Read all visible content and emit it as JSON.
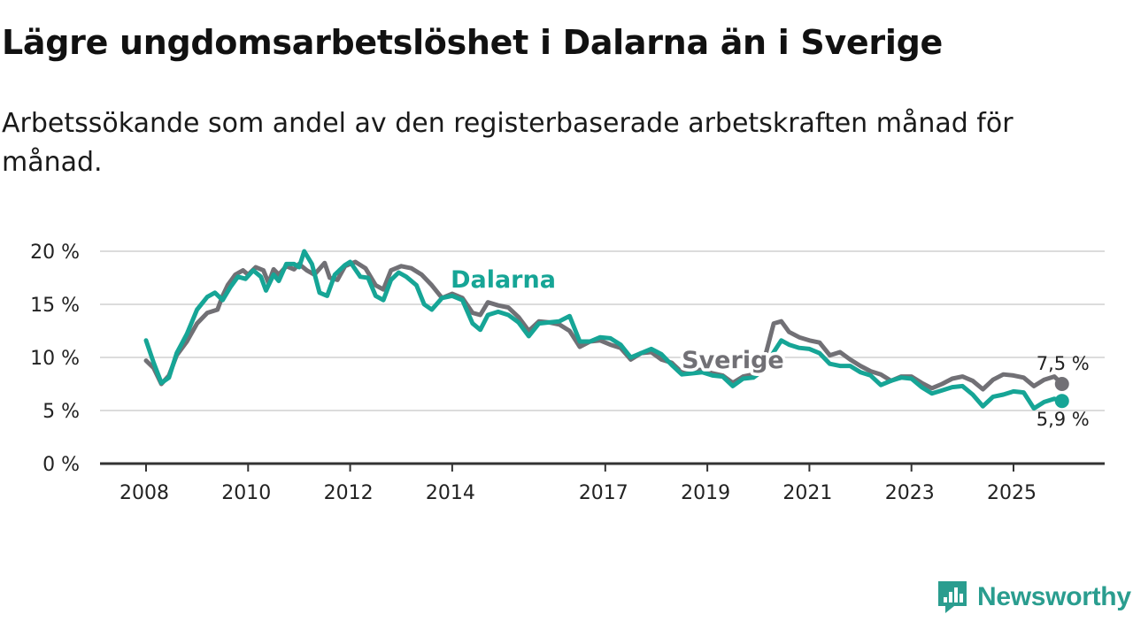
{
  "header": {
    "title": "Lägre ungdomsarbetslöshet i Dalarna än i Sverige",
    "subtitle": "Arbetssökande som andel av den registerbaserade arbetskraften månad för månad."
  },
  "brand": {
    "name": "Newsworthy"
  },
  "colors": {
    "dalarna": "#16a596",
    "sverige": "#717075",
    "grid": "#dcdcdc",
    "axis": "#333333",
    "brand": "#2a9d8f"
  },
  "chart_data": {
    "type": "line",
    "title": "Lägre ungdomsarbetslöshet i Dalarna än i Sverige",
    "subtitle": "Arbetssökande som andel av den registerbaserade arbetskraften månad för månad.",
    "xlabel": "",
    "ylabel": "",
    "xlim": [
      2008.0,
      2026.6
    ],
    "ylim": [
      0,
      20
    ],
    "yticks": [
      0,
      5,
      10,
      15,
      20
    ],
    "ytick_labels": [
      "0 %",
      "5 %",
      "10 %",
      "15 %",
      "20 %"
    ],
    "xticks": [
      2008,
      2010,
      2012,
      2014,
      2017,
      2019,
      2021,
      2023,
      2025
    ],
    "xtick_labels": [
      "2008",
      "2010",
      "2012",
      "2014",
      "2017",
      "2019",
      "2021",
      "2023",
      "2025"
    ],
    "grid": true,
    "series": [
      {
        "name": "Sverige",
        "label": "Sverige",
        "end_label": "7,5 %",
        "points": [
          [
            2008.0,
            9.7
          ],
          [
            2008.15,
            9.0
          ],
          [
            2008.3,
            7.5
          ],
          [
            2008.45,
            8.3
          ],
          [
            2008.6,
            10.2
          ],
          [
            2008.8,
            11.5
          ],
          [
            2009.0,
            13.2
          ],
          [
            2009.2,
            14.2
          ],
          [
            2009.4,
            14.5
          ],
          [
            2009.5,
            15.8
          ],
          [
            2009.6,
            16.8
          ],
          [
            2009.75,
            17.8
          ],
          [
            2009.9,
            18.2
          ],
          [
            2010.0,
            17.8
          ],
          [
            2010.15,
            18.5
          ],
          [
            2010.3,
            18.2
          ],
          [
            2010.4,
            17.0
          ],
          [
            2010.5,
            18.3
          ],
          [
            2010.6,
            17.8
          ],
          [
            2010.75,
            18.6
          ],
          [
            2010.9,
            18.3
          ],
          [
            2011.0,
            18.8
          ],
          [
            2011.15,
            18.2
          ],
          [
            2011.3,
            17.8
          ],
          [
            2011.5,
            18.9
          ],
          [
            2011.6,
            17.5
          ],
          [
            2011.75,
            17.3
          ],
          [
            2011.9,
            18.6
          ],
          [
            2012.1,
            19.0
          ],
          [
            2012.3,
            18.4
          ],
          [
            2012.5,
            16.8
          ],
          [
            2012.65,
            16.4
          ],
          [
            2012.8,
            18.2
          ],
          [
            2013.0,
            18.6
          ],
          [
            2013.2,
            18.4
          ],
          [
            2013.4,
            17.8
          ],
          [
            2013.6,
            16.8
          ],
          [
            2013.8,
            15.6
          ],
          [
            2014.0,
            16.0
          ],
          [
            2014.2,
            15.6
          ],
          [
            2014.4,
            14.2
          ],
          [
            2014.55,
            14.0
          ],
          [
            2014.7,
            15.2
          ],
          [
            2014.9,
            14.9
          ],
          [
            2015.1,
            14.7
          ],
          [
            2015.3,
            13.8
          ],
          [
            2015.5,
            12.5
          ],
          [
            2015.7,
            13.4
          ],
          [
            2015.9,
            13.3
          ],
          [
            2016.1,
            13.1
          ],
          [
            2016.3,
            12.5
          ],
          [
            2016.5,
            11.0
          ],
          [
            2016.7,
            11.5
          ],
          [
            2016.9,
            11.6
          ],
          [
            2017.1,
            11.2
          ],
          [
            2017.3,
            10.9
          ],
          [
            2017.5,
            9.8
          ],
          [
            2017.7,
            10.4
          ],
          [
            2017.9,
            10.5
          ],
          [
            2018.1,
            9.8
          ],
          [
            2018.3,
            9.5
          ],
          [
            2018.5,
            8.6
          ],
          [
            2018.7,
            8.9
          ],
          [
            2018.9,
            8.8
          ],
          [
            2019.1,
            8.5
          ],
          [
            2019.3,
            8.3
          ],
          [
            2019.5,
            7.6
          ],
          [
            2019.7,
            8.2
          ],
          [
            2019.9,
            8.4
          ],
          [
            2020.1,
            9.5
          ],
          [
            2020.3,
            13.2
          ],
          [
            2020.45,
            13.4
          ],
          [
            2020.6,
            12.4
          ],
          [
            2020.8,
            11.9
          ],
          [
            2021.0,
            11.6
          ],
          [
            2021.2,
            11.4
          ],
          [
            2021.4,
            10.2
          ],
          [
            2021.6,
            10.5
          ],
          [
            2021.8,
            9.8
          ],
          [
            2022.0,
            9.2
          ],
          [
            2022.2,
            8.7
          ],
          [
            2022.4,
            8.4
          ],
          [
            2022.6,
            7.8
          ],
          [
            2022.8,
            8.2
          ],
          [
            2023.0,
            8.2
          ],
          [
            2023.2,
            7.6
          ],
          [
            2023.4,
            7.1
          ],
          [
            2023.6,
            7.5
          ],
          [
            2023.8,
            8.0
          ],
          [
            2024.0,
            8.2
          ],
          [
            2024.2,
            7.8
          ],
          [
            2024.4,
            7.0
          ],
          [
            2024.6,
            7.9
          ],
          [
            2024.8,
            8.4
          ],
          [
            2025.0,
            8.3
          ],
          [
            2025.2,
            8.1
          ],
          [
            2025.4,
            7.3
          ],
          [
            2025.6,
            7.9
          ],
          [
            2025.8,
            8.2
          ],
          [
            2025.95,
            7.5
          ]
        ]
      },
      {
        "name": "Dalarna",
        "label": "Dalarna",
        "end_label": "5,9 %",
        "points": [
          [
            2008.0,
            11.6
          ],
          [
            2008.15,
            9.5
          ],
          [
            2008.3,
            7.6
          ],
          [
            2008.45,
            8.1
          ],
          [
            2008.6,
            10.4
          ],
          [
            2008.8,
            12.2
          ],
          [
            2009.0,
            14.5
          ],
          [
            2009.2,
            15.7
          ],
          [
            2009.35,
            16.1
          ],
          [
            2009.5,
            15.4
          ],
          [
            2009.65,
            16.6
          ],
          [
            2009.8,
            17.6
          ],
          [
            2009.95,
            17.4
          ],
          [
            2010.1,
            18.2
          ],
          [
            2010.25,
            17.6
          ],
          [
            2010.35,
            16.3
          ],
          [
            2010.5,
            17.8
          ],
          [
            2010.6,
            17.2
          ],
          [
            2010.75,
            18.8
          ],
          [
            2010.9,
            18.8
          ],
          [
            2011.0,
            18.5
          ],
          [
            2011.1,
            20.0
          ],
          [
            2011.25,
            18.8
          ],
          [
            2011.4,
            16.1
          ],
          [
            2011.55,
            15.8
          ],
          [
            2011.7,
            17.8
          ],
          [
            2011.9,
            18.7
          ],
          [
            2012.0,
            19.0
          ],
          [
            2012.2,
            17.6
          ],
          [
            2012.35,
            17.5
          ],
          [
            2012.5,
            15.8
          ],
          [
            2012.65,
            15.4
          ],
          [
            2012.8,
            17.3
          ],
          [
            2012.95,
            18.0
          ],
          [
            2013.1,
            17.6
          ],
          [
            2013.3,
            16.8
          ],
          [
            2013.45,
            15.0
          ],
          [
            2013.6,
            14.5
          ],
          [
            2013.8,
            15.6
          ],
          [
            2014.0,
            15.8
          ],
          [
            2014.2,
            15.4
          ],
          [
            2014.4,
            13.2
          ],
          [
            2014.55,
            12.6
          ],
          [
            2014.7,
            14.0
          ],
          [
            2014.9,
            14.3
          ],
          [
            2015.1,
            14.0
          ],
          [
            2015.3,
            13.3
          ],
          [
            2015.5,
            12.0
          ],
          [
            2015.7,
            13.2
          ],
          [
            2015.9,
            13.3
          ],
          [
            2016.1,
            13.4
          ],
          [
            2016.3,
            13.9
          ],
          [
            2016.5,
            11.5
          ],
          [
            2016.7,
            11.5
          ],
          [
            2016.9,
            11.9
          ],
          [
            2017.1,
            11.8
          ],
          [
            2017.3,
            11.2
          ],
          [
            2017.5,
            10.0
          ],
          [
            2017.7,
            10.4
          ],
          [
            2017.9,
            10.8
          ],
          [
            2018.1,
            10.3
          ],
          [
            2018.3,
            9.3
          ],
          [
            2018.5,
            8.4
          ],
          [
            2018.7,
            8.5
          ],
          [
            2018.9,
            8.6
          ],
          [
            2019.1,
            8.3
          ],
          [
            2019.3,
            8.2
          ],
          [
            2019.5,
            7.3
          ],
          [
            2019.7,
            8.0
          ],
          [
            2019.9,
            8.1
          ],
          [
            2020.1,
            8.8
          ],
          [
            2020.3,
            10.5
          ],
          [
            2020.45,
            11.6
          ],
          [
            2020.6,
            11.2
          ],
          [
            2020.8,
            10.9
          ],
          [
            2021.0,
            10.8
          ],
          [
            2021.2,
            10.4
          ],
          [
            2021.4,
            9.4
          ],
          [
            2021.6,
            9.2
          ],
          [
            2021.8,
            9.2
          ],
          [
            2022.0,
            8.6
          ],
          [
            2022.2,
            8.3
          ],
          [
            2022.4,
            7.4
          ],
          [
            2022.6,
            7.8
          ],
          [
            2022.8,
            8.1
          ],
          [
            2023.0,
            8.0
          ],
          [
            2023.2,
            7.2
          ],
          [
            2023.4,
            6.6
          ],
          [
            2023.6,
            6.9
          ],
          [
            2023.8,
            7.2
          ],
          [
            2024.0,
            7.3
          ],
          [
            2024.2,
            6.5
          ],
          [
            2024.4,
            5.4
          ],
          [
            2024.6,
            6.3
          ],
          [
            2024.8,
            6.5
          ],
          [
            2025.0,
            6.8
          ],
          [
            2025.2,
            6.7
          ],
          [
            2025.4,
            5.2
          ],
          [
            2025.6,
            5.8
          ],
          [
            2025.8,
            6.1
          ],
          [
            2025.95,
            5.9
          ]
        ]
      }
    ]
  }
}
